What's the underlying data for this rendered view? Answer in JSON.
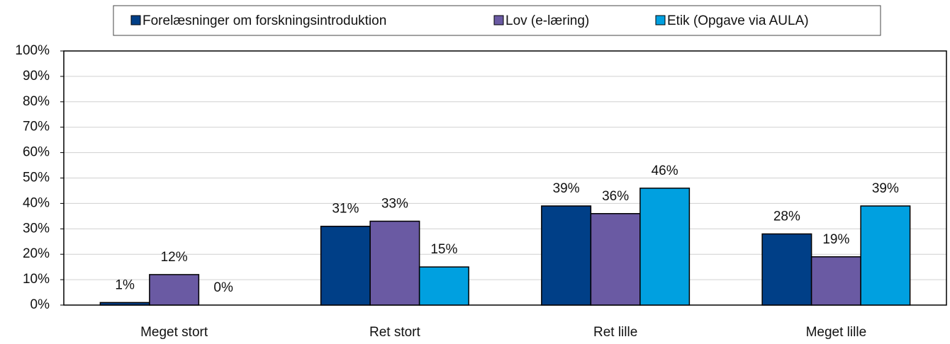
{
  "chart_data": {
    "type": "bar",
    "categories": [
      "Meget stort",
      "Ret stort",
      "Ret lille",
      "Meget lille"
    ],
    "series": [
      {
        "name": "Forelæsninger om forskningsintroduktion",
        "color": "#003f87",
        "values": [
          1,
          31,
          39,
          28
        ],
        "value_labels": [
          "1%",
          "31%",
          "39%",
          "28%"
        ]
      },
      {
        "name": "Lov (e-læring)",
        "color": "#6a5aa3",
        "values": [
          12,
          33,
          36,
          19
        ],
        "value_labels": [
          "12%",
          "33%",
          "36%",
          "19%"
        ]
      },
      {
        "name": "Etik (Opgave via AULA)",
        "color": "#00a0e0",
        "values": [
          0,
          15,
          46,
          39
        ],
        "value_labels": [
          "0%",
          "15%",
          "46%",
          "39%"
        ]
      }
    ],
    "ylim": [
      0,
      100
    ],
    "yticks": [
      {
        "value": 0,
        "label": "0%"
      },
      {
        "value": 10,
        "label": "10%"
      },
      {
        "value": 20,
        "label": "20%"
      },
      {
        "value": 30,
        "label": "30%"
      },
      {
        "value": 40,
        "label": "40%"
      },
      {
        "value": 50,
        "label": "50%"
      },
      {
        "value": 60,
        "label": "60%"
      },
      {
        "value": 70,
        "label": "70%"
      },
      {
        "value": 80,
        "label": "80%"
      },
      {
        "value": 90,
        "label": "90%"
      },
      {
        "value": 100,
        "label": "100%"
      }
    ],
    "grid": true,
    "legend": "top"
  }
}
